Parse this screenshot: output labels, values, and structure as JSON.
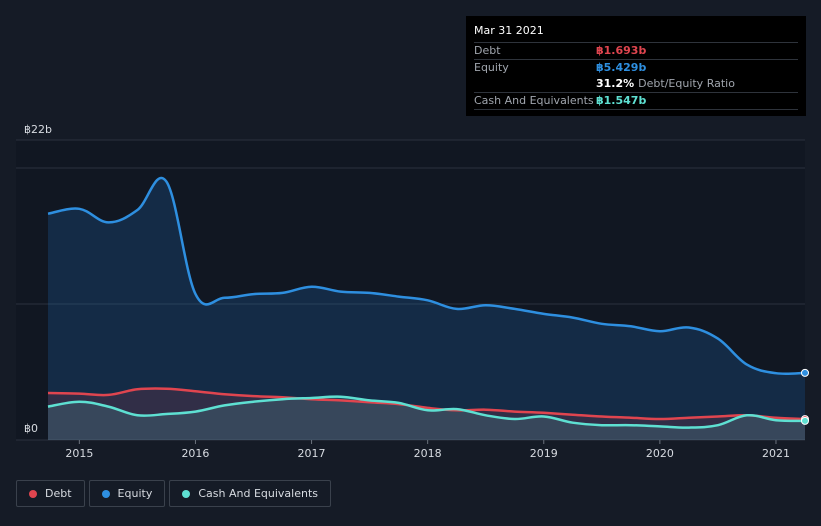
{
  "tooltip": {
    "date": "Mar 31 2021",
    "debt_label": "Debt",
    "debt_value": "฿1.693b",
    "equity_label": "Equity",
    "equity_value": "฿5.429b",
    "ratio_value": "31.2%",
    "ratio_label": "Debt/Equity Ratio",
    "cash_label": "Cash And Equivalents",
    "cash_value": "฿1.547b"
  },
  "legend": [
    {
      "label": "Debt",
      "color": "#e0454f"
    },
    {
      "label": "Equity",
      "color": "#2e8fe0"
    },
    {
      "label": "Cash And Equivalents",
      "color": "#5ee0d2"
    }
  ],
  "chart_data": {
    "type": "area",
    "title": "",
    "xlabel": "",
    "ylabel": "",
    "y_ticks": [
      "฿22b",
      "฿0"
    ],
    "ylim": [
      0,
      22
    ],
    "x_ticks": [
      "2015",
      "2016",
      "2017",
      "2018",
      "2019",
      "2020",
      "2021"
    ],
    "xlim": [
      2014.73,
      2021.25
    ],
    "grid": true,
    "colors": {
      "debt": "#e0454f",
      "equity": "#2e8fe0",
      "cash": "#5ee0d2"
    },
    "series": [
      {
        "name": "Debt",
        "x": [
          2014.73,
          2015.0,
          2015.25,
          2015.5,
          2015.75,
          2016.0,
          2016.25,
          2016.5,
          2016.75,
          2017.0,
          2017.25,
          2017.5,
          2017.75,
          2018.0,
          2018.25,
          2018.5,
          2018.75,
          2019.0,
          2019.25,
          2019.5,
          2019.75,
          2020.0,
          2020.25,
          2020.5,
          2020.75,
          2021.0,
          2021.25
        ],
        "values": [
          3.8,
          3.75,
          3.65,
          4.1,
          4.15,
          3.95,
          3.7,
          3.55,
          3.45,
          3.3,
          3.2,
          3.05,
          2.9,
          2.6,
          2.4,
          2.45,
          2.3,
          2.2,
          2.05,
          1.9,
          1.8,
          1.7,
          1.8,
          1.9,
          2.0,
          1.8,
          1.693
        ]
      },
      {
        "name": "Equity",
        "x": [
          2014.73,
          2015.0,
          2015.25,
          2015.5,
          2015.75,
          2016.0,
          2016.25,
          2016.5,
          2016.75,
          2017.0,
          2017.25,
          2017.5,
          2017.75,
          2018.0,
          2018.25,
          2018.5,
          2018.75,
          2019.0,
          2019.25,
          2019.5,
          2019.75,
          2020.0,
          2020.25,
          2020.5,
          2020.75,
          2021.0,
          2021.25
        ],
        "values": [
          18.3,
          18.7,
          17.6,
          18.6,
          20.9,
          11.8,
          11.5,
          11.8,
          11.9,
          12.4,
          12.0,
          11.9,
          11.6,
          11.3,
          10.6,
          10.9,
          10.6,
          10.2,
          9.9,
          9.4,
          9.2,
          8.8,
          9.1,
          8.2,
          6.1,
          5.4,
          5.429
        ]
      },
      {
        "name": "Cash And Equivalents",
        "x": [
          2014.73,
          2015.0,
          2015.25,
          2015.5,
          2015.75,
          2016.0,
          2016.25,
          2016.5,
          2016.75,
          2017.0,
          2017.25,
          2017.5,
          2017.75,
          2018.0,
          2018.25,
          2018.5,
          2018.75,
          2019.0,
          2019.25,
          2019.5,
          2019.75,
          2020.0,
          2020.25,
          2020.5,
          2020.75,
          2021.0,
          2021.25
        ],
        "values": [
          2.7,
          3.1,
          2.7,
          2.0,
          2.1,
          2.3,
          2.8,
          3.1,
          3.3,
          3.4,
          3.5,
          3.2,
          3.0,
          2.4,
          2.5,
          2.0,
          1.7,
          1.9,
          1.4,
          1.2,
          1.2,
          1.1,
          1.0,
          1.2,
          2.0,
          1.6,
          1.547
        ]
      }
    ]
  }
}
